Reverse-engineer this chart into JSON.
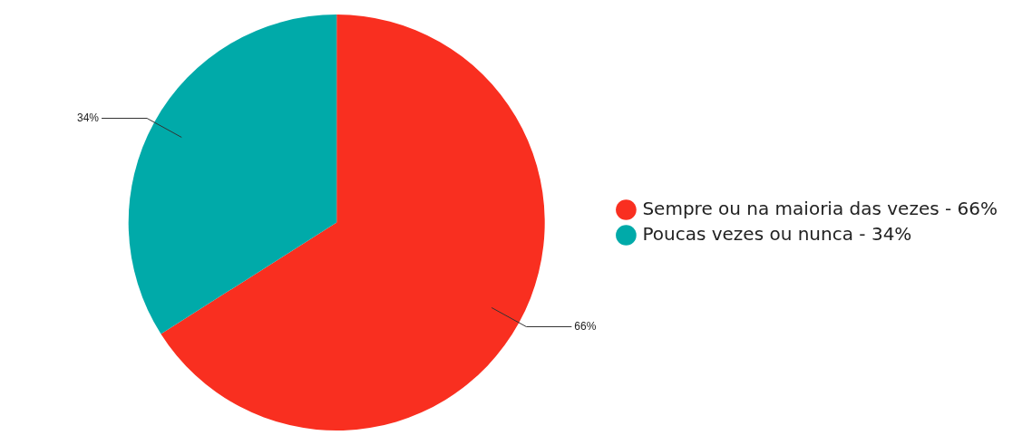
{
  "chart_data": {
    "type": "pie",
    "categories": [
      "Sempre ou na maioria das vezes - 66%",
      "Poucas vezes ou nunca - 34%"
    ],
    "values": [
      66,
      34
    ],
    "colors": [
      "#f92f20",
      "#00aaa9"
    ],
    "value_labels": [
      "66%",
      "34%"
    ],
    "legend": "right"
  }
}
